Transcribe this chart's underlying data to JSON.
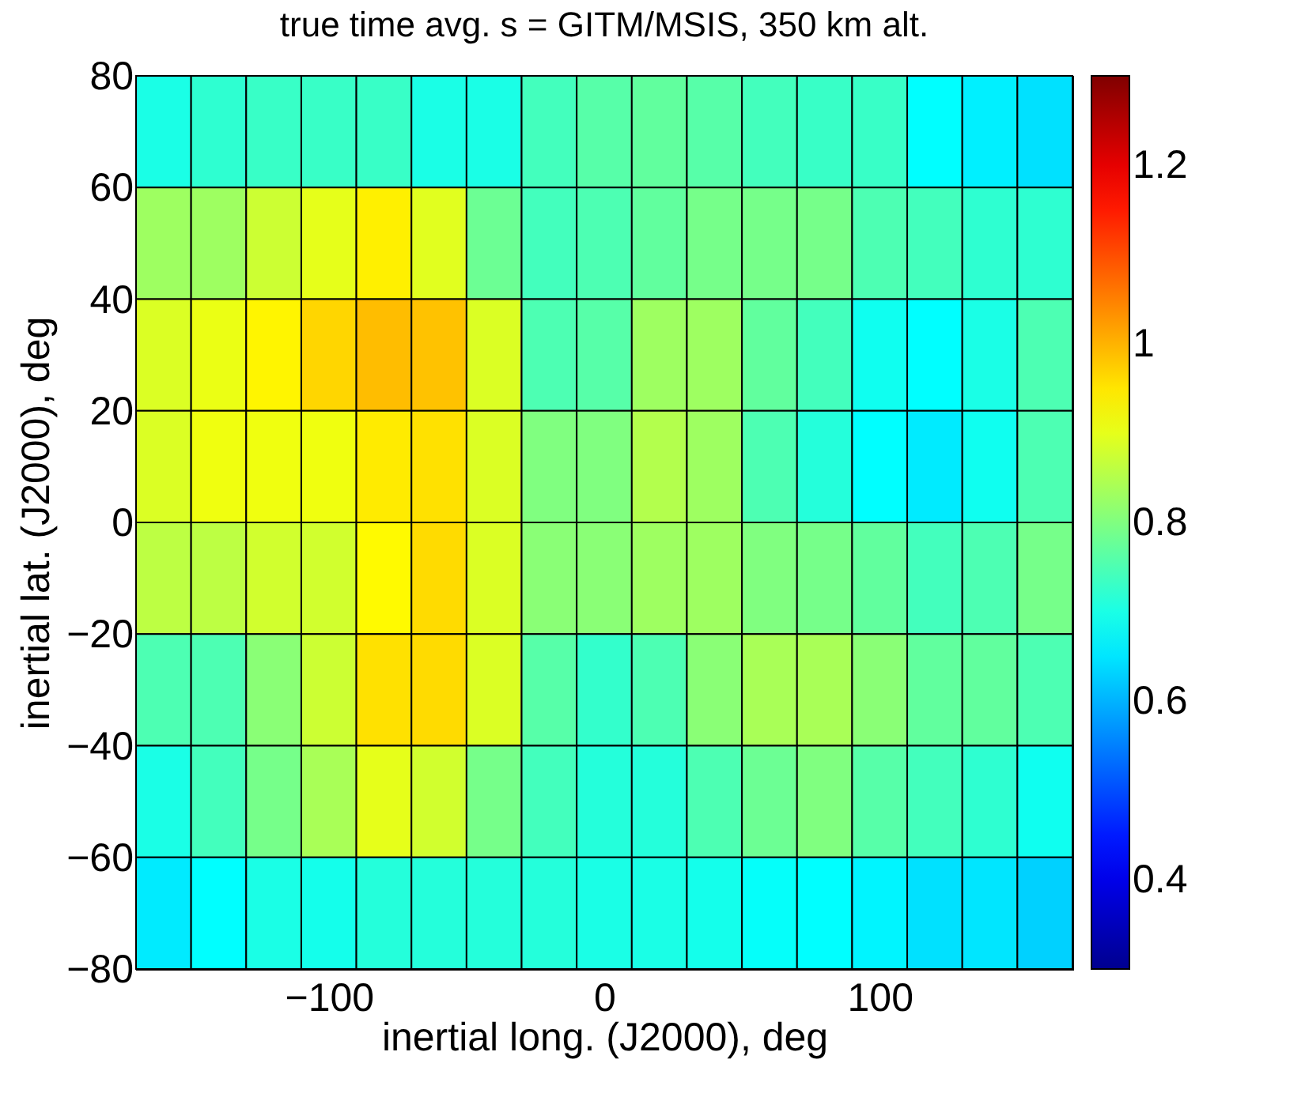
{
  "chart_data": {
    "type": "heatmap",
    "title": "true time avg. s = GITM/MSIS, 350 km alt.",
    "xlabel": "inertial long. (J2000), deg",
    "ylabel": "inertial lat. (J2000), deg",
    "x": [
      -160,
      -140,
      -120,
      -100,
      -80,
      -60,
      -40,
      -20,
      0,
      20,
      40,
      60,
      80,
      100,
      120,
      140,
      160
    ],
    "xlim": [
      -170,
      170
    ],
    "xticks": [
      -100,
      0,
      100
    ],
    "ylim": [
      -80,
      80
    ],
    "yticks": [
      -80,
      -60,
      -40,
      -20,
      0,
      20,
      40,
      60,
      80
    ],
    "clim": [
      0.3,
      1.3
    ],
    "cticks": [
      0.4,
      0.6,
      0.8,
      1,
      1.2
    ],
    "cells": [
      [
        0.7,
        0.72,
        0.73,
        0.73,
        0.73,
        0.7,
        0.7,
        0.74,
        0.76,
        0.77,
        0.76,
        0.74,
        0.73,
        0.73,
        0.675,
        0.66,
        0.645
      ],
      [
        0.83,
        0.83,
        0.875,
        0.9,
        0.94,
        0.895,
        0.78,
        0.74,
        0.75,
        0.77,
        0.79,
        0.79,
        0.79,
        0.75,
        0.74,
        0.72,
        0.72
      ],
      [
        0.89,
        0.905,
        0.935,
        0.965,
        0.99,
        0.985,
        0.89,
        0.75,
        0.76,
        0.83,
        0.83,
        0.77,
        0.74,
        0.69,
        0.675,
        0.7,
        0.75
      ],
      [
        0.89,
        0.91,
        0.91,
        0.91,
        0.945,
        0.955,
        0.89,
        0.8,
        0.8,
        0.85,
        0.83,
        0.75,
        0.71,
        0.675,
        0.655,
        0.69,
        0.75
      ],
      [
        0.86,
        0.86,
        0.88,
        0.88,
        0.93,
        0.96,
        0.89,
        0.81,
        0.81,
        0.83,
        0.83,
        0.8,
        0.79,
        0.77,
        0.74,
        0.75,
        0.79
      ],
      [
        0.75,
        0.75,
        0.81,
        0.875,
        0.955,
        0.96,
        0.89,
        0.76,
        0.725,
        0.75,
        0.81,
        0.84,
        0.84,
        0.81,
        0.77,
        0.77,
        0.75
      ],
      [
        0.7,
        0.74,
        0.79,
        0.84,
        0.9,
        0.88,
        0.79,
        0.74,
        0.71,
        0.71,
        0.75,
        0.78,
        0.8,
        0.76,
        0.74,
        0.72,
        0.69
      ],
      [
        0.655,
        0.675,
        0.7,
        0.695,
        0.71,
        0.71,
        0.71,
        0.71,
        0.7,
        0.7,
        0.695,
        0.68,
        0.675,
        0.665,
        0.645,
        0.65,
        0.63
      ]
    ]
  }
}
